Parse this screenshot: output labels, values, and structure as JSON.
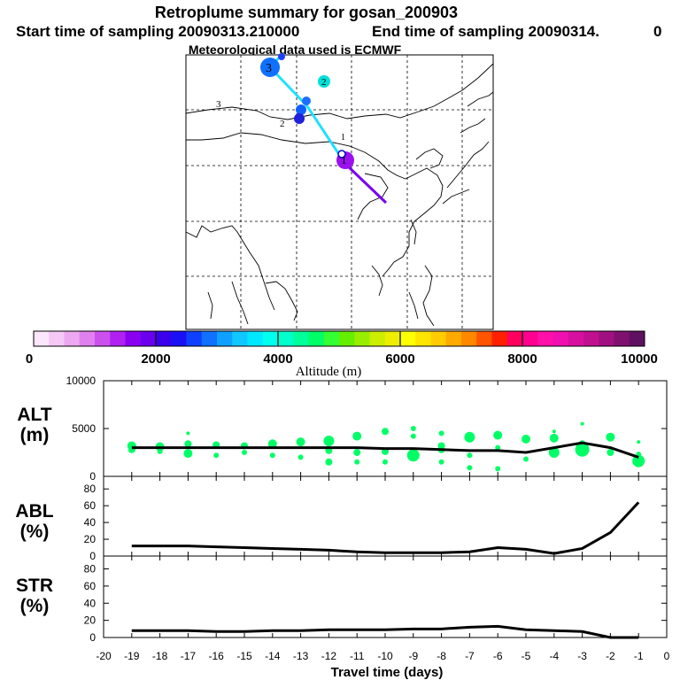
{
  "title": {
    "line1": "Retroplume summary for gosan_200903",
    "line2a": "Start time of sampling 20090313.210000",
    "line2b": "End time of sampling 20090314.",
    "line2c": "0",
    "line3": "Meteorological data used is ECMWF"
  },
  "colorbar": {
    "label": "Altitude  (m)",
    "tick_labels": [
      "0",
      "2000",
      "4000",
      "6000",
      "8000",
      "10000"
    ],
    "min": 0,
    "max": 10000,
    "colors": [
      "#fbe6fb",
      "#f5c8f5",
      "#eca8f0",
      "#e080ee",
      "#cc50ee",
      "#b020f0",
      "#8a00f0",
      "#6a00ee",
      "#3a00ee",
      "#1a10f5",
      "#1040ff",
      "#1070ff",
      "#10a0ff",
      "#10c8ff",
      "#00e8ff",
      "#00ffee",
      "#00ffcc",
      "#00ff99",
      "#00ff66",
      "#33ff33",
      "#66ee00",
      "#99ee00",
      "#ccee00",
      "#eeee00",
      "#ffff00",
      "#ffe600",
      "#ffcc00",
      "#ffaa00",
      "#ff8800",
      "#ff5500",
      "#ff2000",
      "#ff0060",
      "#ff0090",
      "#ff10a8",
      "#f010b0",
      "#d810a0",
      "#c01090",
      "#a01080",
      "#801070",
      "#601060"
    ]
  },
  "map": {
    "plume_labels": [
      "1",
      "2",
      "3",
      "1",
      "2",
      "3"
    ],
    "path_colors": [
      "#7a00ee",
      "#2f6cff",
      "#00d8ff",
      "#20e0ff"
    ]
  },
  "chart_data": [
    {
      "type": "scatter",
      "panel": "ALT",
      "ylabel_line1": "ALT",
      "ylabel_line2": "(m)",
      "ylim": [
        0,
        10000
      ],
      "y_ticks": [
        "10000",
        "5000",
        "0"
      ],
      "xlim": [
        -20,
        0
      ],
      "series": [
        {
          "name": "mean altitude",
          "x": [
            -19,
            -18,
            -17,
            -16,
            -15,
            -14,
            -13,
            -12,
            -11,
            -10,
            -9,
            -8,
            -7,
            -6,
            -5,
            -4,
            -3,
            -2,
            -1
          ],
          "y": [
            3000,
            3000,
            3000,
            3000,
            3000,
            3000,
            3000,
            3000,
            3000,
            2900,
            2900,
            2800,
            2700,
            2700,
            2500,
            3000,
            3500,
            3000,
            2000
          ]
        },
        {
          "name": "cluster altitudes",
          "color": "#00ff66",
          "points": [
            {
              "x": -19,
              "y": 3200,
              "s": 5
            },
            {
              "x": -19,
              "y": 2800,
              "s": 4
            },
            {
              "x": -18,
              "y": 3100,
              "s": 5
            },
            {
              "x": -18,
              "y": 2600,
              "s": 3
            },
            {
              "x": -17,
              "y": 4500,
              "s": 2
            },
            {
              "x": -17,
              "y": 3400,
              "s": 4
            },
            {
              "x": -17,
              "y": 2400,
              "s": 5
            },
            {
              "x": -16,
              "y": 3300,
              "s": 4
            },
            {
              "x": -16,
              "y": 2200,
              "s": 3
            },
            {
              "x": -15,
              "y": 3200,
              "s": 4
            },
            {
              "x": -15,
              "y": 2500,
              "s": 3
            },
            {
              "x": -14,
              "y": 3400,
              "s": 5
            },
            {
              "x": -14,
              "y": 2200,
              "s": 3
            },
            {
              "x": -13,
              "y": 3600,
              "s": 5
            },
            {
              "x": -13,
              "y": 2000,
              "s": 3
            },
            {
              "x": -12,
              "y": 3700,
              "s": 6
            },
            {
              "x": -12,
              "y": 2700,
              "s": 4
            },
            {
              "x": -12,
              "y": 1500,
              "s": 4
            },
            {
              "x": -11,
              "y": 4200,
              "s": 5
            },
            {
              "x": -11,
              "y": 2500,
              "s": 4
            },
            {
              "x": -11,
              "y": 1500,
              "s": 3
            },
            {
              "x": -10,
              "y": 4700,
              "s": 4
            },
            {
              "x": -10,
              "y": 2600,
              "s": 4
            },
            {
              "x": -10,
              "y": 1500,
              "s": 3
            },
            {
              "x": -9,
              "y": 5000,
              "s": 3
            },
            {
              "x": -9,
              "y": 4200,
              "s": 3
            },
            {
              "x": -9,
              "y": 2200,
              "s": 7
            },
            {
              "x": -8,
              "y": 4500,
              "s": 3
            },
            {
              "x": -8,
              "y": 3200,
              "s": 4
            },
            {
              "x": -8,
              "y": 2800,
              "s": 4
            },
            {
              "x": -8,
              "y": 1500,
              "s": 3
            },
            {
              "x": -7,
              "y": 4100,
              "s": 6
            },
            {
              "x": -7,
              "y": 2200,
              "s": 3
            },
            {
              "x": -7,
              "y": 900,
              "s": 3
            },
            {
              "x": -6,
              "y": 4300,
              "s": 5
            },
            {
              "x": -6,
              "y": 3000,
              "s": 3
            },
            {
              "x": -6,
              "y": 800,
              "s": 3
            },
            {
              "x": -5,
              "y": 3900,
              "s": 5
            },
            {
              "x": -5,
              "y": 1800,
              "s": 3
            },
            {
              "x": -4,
              "y": 4000,
              "s": 5
            },
            {
              "x": -4,
              "y": 2500,
              "s": 6
            },
            {
              "x": -4,
              "y": 4700,
              "s": 2
            },
            {
              "x": -3,
              "y": 5500,
              "s": 2
            },
            {
              "x": -3,
              "y": 3400,
              "s": 4
            },
            {
              "x": -3,
              "y": 2800,
              "s": 8
            },
            {
              "x": -2,
              "y": 4100,
              "s": 5
            },
            {
              "x": -2,
              "y": 2500,
              "s": 4
            },
            {
              "x": -1,
              "y": 3600,
              "s": 2
            },
            {
              "x": -1,
              "y": 2300,
              "s": 3
            },
            {
              "x": -1,
              "y": 1600,
              "s": 7
            }
          ]
        }
      ]
    },
    {
      "type": "line",
      "panel": "ABL",
      "ylabel_line1": "ABL",
      "ylabel_line2": "(%)",
      "ylim": [
        0,
        95
      ],
      "y_ticks": [
        "80",
        "60",
        "40",
        "20",
        "0"
      ],
      "xlim": [
        -20,
        0
      ],
      "x": [
        -19,
        -18,
        -17,
        -16,
        -15,
        -14,
        -13,
        -12,
        -11,
        -10,
        -9,
        -8,
        -7,
        -6,
        -5,
        -4,
        -3,
        -2,
        -1
      ],
      "y": [
        12,
        12,
        12,
        11,
        10,
        9,
        8,
        7,
        5,
        4,
        4,
        4,
        5,
        10,
        8,
        3,
        9,
        28,
        64
      ]
    },
    {
      "type": "line",
      "panel": "STR",
      "ylabel_line1": "STR",
      "ylabel_line2": "(%)",
      "ylim": [
        0,
        95
      ],
      "y_ticks": [
        "80",
        "60",
        "40",
        "20",
        "0"
      ],
      "xlim": [
        -20,
        0
      ],
      "x": [
        -19,
        -18,
        -17,
        -16,
        -15,
        -14,
        -13,
        -12,
        -11,
        -10,
        -9,
        -8,
        -7,
        -6,
        -5,
        -4,
        -3,
        -2,
        -1
      ],
      "y": [
        8,
        8,
        8,
        7,
        7,
        8,
        8,
        9,
        9,
        9,
        10,
        10,
        12,
        13,
        9,
        8,
        7,
        0,
        0
      ],
      "xlabel": "Travel time (days)",
      "x_tick_labels": [
        "-20",
        "-19",
        "-18",
        "-17",
        "-16",
        "-15",
        "-14",
        "-13",
        "-12",
        "-11",
        "-10",
        "-9",
        "-8",
        "-7",
        "-6",
        "-5",
        "-4",
        "-3",
        "-2",
        "-1",
        "0"
      ]
    }
  ]
}
